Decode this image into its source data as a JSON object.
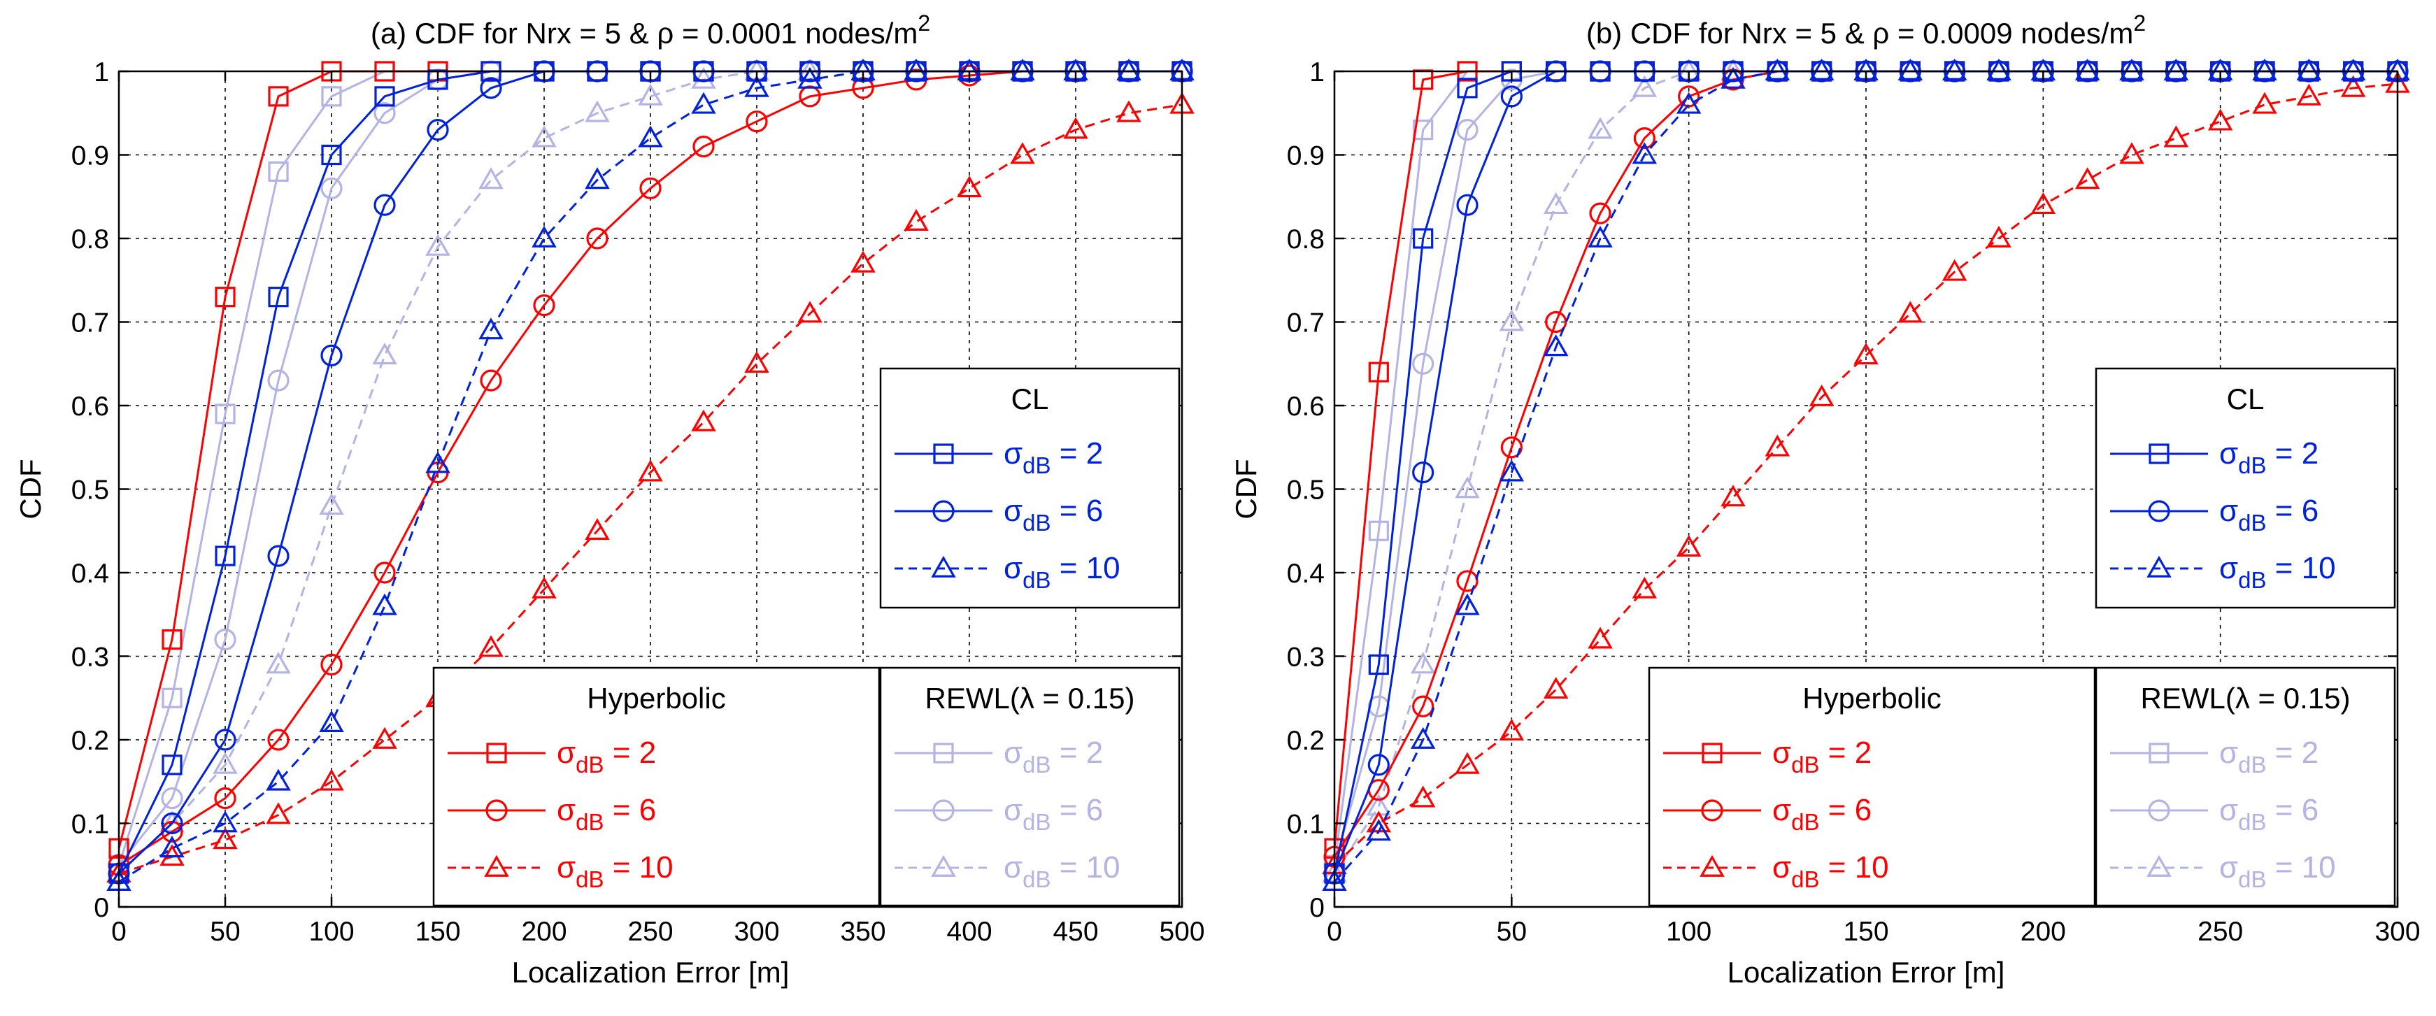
{
  "chart_data": [
    {
      "type": "line",
      "title_main": "(a) CDF for Nrx = 5 & ρ = 0.0001 nodes/m",
      "title_sup": "2",
      "xlabel": "Localization Error [m]",
      "ylabel": "CDF",
      "xlim": [
        0,
        500
      ],
      "ylim": [
        0,
        1
      ],
      "xticks": [
        "0",
        "50",
        "100",
        "150",
        "200",
        "250",
        "300",
        "350",
        "400",
        "450",
        "500"
      ],
      "yticks": [
        "0",
        "0.1",
        "0.2",
        "0.3",
        "0.4",
        "0.5",
        "0.6",
        "0.7",
        "0.8",
        "0.9",
        "1"
      ],
      "grid": true,
      "x": [
        0,
        25,
        50,
        75,
        100,
        125,
        150,
        175,
        200,
        225,
        250,
        275,
        300,
        325,
        350,
        375,
        400,
        425,
        450,
        475,
        500
      ],
      "series": [
        {
          "name": "Hyperbolic σdB = 2",
          "group": "Hyperbolic",
          "sigma": "2",
          "color": "#ff0000",
          "marker": "square",
          "dash": "solid",
          "values": [
            0.07,
            0.32,
            0.73,
            0.97,
            1.0,
            1.0,
            1.0,
            1.0,
            1.0,
            1.0,
            1.0,
            1.0,
            1.0,
            1.0,
            1.0,
            1.0,
            1.0,
            1.0,
            1.0,
            1.0,
            1.0
          ]
        },
        {
          "name": "Hyperbolic σdB = 6",
          "group": "Hyperbolic",
          "sigma": "6",
          "color": "#ff0000",
          "marker": "circle",
          "dash": "solid",
          "values": [
            0.05,
            0.09,
            0.13,
            0.2,
            0.29,
            0.4,
            0.52,
            0.63,
            0.72,
            0.8,
            0.86,
            0.91,
            0.94,
            0.97,
            0.98,
            0.99,
            0.995,
            1.0,
            1.0,
            1.0,
            1.0
          ]
        },
        {
          "name": "Hyperbolic σdB = 10",
          "group": "Hyperbolic",
          "sigma": "10",
          "color": "#ff0000",
          "marker": "triangle",
          "dash": "dashed",
          "values": [
            0.04,
            0.06,
            0.08,
            0.11,
            0.15,
            0.2,
            0.25,
            0.31,
            0.38,
            0.45,
            0.52,
            0.58,
            0.65,
            0.71,
            0.77,
            0.82,
            0.86,
            0.9,
            0.93,
            0.95,
            0.96
          ]
        },
        {
          "name": "CL σdB = 2",
          "group": "CL",
          "sigma": "2",
          "color": "#0022dd",
          "marker": "square",
          "dash": "solid",
          "values": [
            0.04,
            0.17,
            0.42,
            0.73,
            0.9,
            0.97,
            0.99,
            1.0,
            1.0,
            1.0,
            1.0,
            1.0,
            1.0,
            1.0,
            1.0,
            1.0,
            1.0,
            1.0,
            1.0,
            1.0,
            1.0
          ]
        },
        {
          "name": "CL σdB = 6",
          "group": "CL",
          "sigma": "6",
          "color": "#0022dd",
          "marker": "circle",
          "dash": "solid",
          "values": [
            0.04,
            0.1,
            0.2,
            0.42,
            0.66,
            0.84,
            0.93,
            0.98,
            1.0,
            1.0,
            1.0,
            1.0,
            1.0,
            1.0,
            1.0,
            1.0,
            1.0,
            1.0,
            1.0,
            1.0,
            1.0
          ]
        },
        {
          "name": "CL σdB = 10",
          "group": "CL",
          "sigma": "10",
          "color": "#0022dd",
          "marker": "triangle",
          "dash": "dashed",
          "values": [
            0.03,
            0.07,
            0.1,
            0.15,
            0.22,
            0.36,
            0.53,
            0.69,
            0.8,
            0.87,
            0.92,
            0.96,
            0.98,
            0.99,
            1.0,
            1.0,
            1.0,
            1.0,
            1.0,
            1.0,
            1.0
          ]
        },
        {
          "name": "REWL σdB = 2",
          "group": "REWL(λ = 0.15)",
          "sigma": "2",
          "color": "#b3b3e6",
          "marker": "square",
          "dash": "solid",
          "values": [
            0.05,
            0.25,
            0.59,
            0.88,
            0.97,
            1.0,
            1.0,
            1.0,
            1.0,
            1.0,
            1.0,
            1.0,
            1.0,
            1.0,
            1.0,
            1.0,
            1.0,
            1.0,
            1.0,
            1.0,
            1.0
          ]
        },
        {
          "name": "REWL σdB = 6",
          "group": "REWL(λ = 0.15)",
          "sigma": "6",
          "color": "#b3b3e6",
          "marker": "circle",
          "dash": "solid",
          "values": [
            0.05,
            0.13,
            0.32,
            0.63,
            0.86,
            0.95,
            0.99,
            1.0,
            1.0,
            1.0,
            1.0,
            1.0,
            1.0,
            1.0,
            1.0,
            1.0,
            1.0,
            1.0,
            1.0,
            1.0,
            1.0
          ]
        },
        {
          "name": "REWL σdB = 10",
          "group": "REWL(λ = 0.15)",
          "sigma": "10",
          "color": "#b3b3e6",
          "marker": "triangle",
          "dash": "dashed",
          "values": [
            0.04,
            0.1,
            0.17,
            0.29,
            0.48,
            0.66,
            0.79,
            0.87,
            0.92,
            0.95,
            0.97,
            0.99,
            1.0,
            1.0,
            1.0,
            1.0,
            1.0,
            1.0,
            1.0,
            1.0,
            1.0
          ]
        }
      ]
    },
    {
      "type": "line",
      "title_main": "(b) CDF for Nrx = 5 & ρ = 0.0009 nodes/m",
      "title_sup": "2",
      "xlabel": "Localization Error [m]",
      "ylabel": "CDF",
      "xlim": [
        0,
        300
      ],
      "ylim": [
        0,
        1
      ],
      "xticks": [
        "0",
        "50",
        "100",
        "150",
        "200",
        "250",
        "300"
      ],
      "yticks": [
        "0",
        "0.1",
        "0.2",
        "0.3",
        "0.4",
        "0.5",
        "0.6",
        "0.7",
        "0.8",
        "0.9",
        "1"
      ],
      "grid": true,
      "x": [
        0,
        12.5,
        25,
        37.5,
        50,
        62.5,
        75,
        87.5,
        100,
        112.5,
        125,
        137.5,
        150,
        162.5,
        175,
        187.5,
        200,
        212.5,
        225,
        237.5,
        250,
        262.5,
        275,
        287.5,
        300
      ],
      "series": [
        {
          "name": "Hyperbolic σdB = 2",
          "group": "Hyperbolic",
          "sigma": "2",
          "color": "#ff0000",
          "marker": "square",
          "dash": "solid",
          "values": [
            0.07,
            0.64,
            0.99,
            1.0,
            1.0,
            1.0,
            1.0,
            1.0,
            1.0,
            1.0,
            1.0,
            1.0,
            1.0,
            1.0,
            1.0,
            1.0,
            1.0,
            1.0,
            1.0,
            1.0,
            1.0,
            1.0,
            1.0,
            1.0,
            1.0
          ]
        },
        {
          "name": "Hyperbolic σdB = 6",
          "group": "Hyperbolic",
          "sigma": "6",
          "color": "#ff0000",
          "marker": "circle",
          "dash": "solid",
          "values": [
            0.06,
            0.14,
            0.24,
            0.39,
            0.55,
            0.7,
            0.83,
            0.92,
            0.97,
            0.99,
            1.0,
            1.0,
            1.0,
            1.0,
            1.0,
            1.0,
            1.0,
            1.0,
            1.0,
            1.0,
            1.0,
            1.0,
            1.0,
            1.0,
            1.0
          ]
        },
        {
          "name": "Hyperbolic σdB = 10",
          "group": "Hyperbolic",
          "sigma": "10",
          "color": "#ff0000",
          "marker": "triangle",
          "dash": "dashed",
          "values": [
            0.05,
            0.1,
            0.13,
            0.17,
            0.21,
            0.26,
            0.32,
            0.38,
            0.43,
            0.49,
            0.55,
            0.61,
            0.66,
            0.71,
            0.76,
            0.8,
            0.84,
            0.87,
            0.9,
            0.92,
            0.94,
            0.96,
            0.97,
            0.98,
            0.985
          ]
        },
        {
          "name": "CL σdB = 2",
          "group": "CL",
          "sigma": "2",
          "color": "#0022dd",
          "marker": "square",
          "dash": "solid",
          "values": [
            0.04,
            0.29,
            0.8,
            0.98,
            1.0,
            1.0,
            1.0,
            1.0,
            1.0,
            1.0,
            1.0,
            1.0,
            1.0,
            1.0,
            1.0,
            1.0,
            1.0,
            1.0,
            1.0,
            1.0,
            1.0,
            1.0,
            1.0,
            1.0,
            1.0
          ]
        },
        {
          "name": "CL σdB = 6",
          "group": "CL",
          "sigma": "6",
          "color": "#0022dd",
          "marker": "circle",
          "dash": "solid",
          "values": [
            0.04,
            0.17,
            0.52,
            0.84,
            0.97,
            1.0,
            1.0,
            1.0,
            1.0,
            1.0,
            1.0,
            1.0,
            1.0,
            1.0,
            1.0,
            1.0,
            1.0,
            1.0,
            1.0,
            1.0,
            1.0,
            1.0,
            1.0,
            1.0,
            1.0
          ]
        },
        {
          "name": "CL σdB = 10",
          "group": "CL",
          "sigma": "10",
          "color": "#0022dd",
          "marker": "triangle",
          "dash": "dashed",
          "values": [
            0.03,
            0.09,
            0.2,
            0.36,
            0.52,
            0.67,
            0.8,
            0.9,
            0.96,
            0.99,
            1.0,
            1.0,
            1.0,
            1.0,
            1.0,
            1.0,
            1.0,
            1.0,
            1.0,
            1.0,
            1.0,
            1.0,
            1.0,
            1.0,
            1.0
          ]
        },
        {
          "name": "REWL σdB = 2",
          "group": "REWL(λ = 0.15)",
          "sigma": "2",
          "color": "#b3b3e6",
          "marker": "square",
          "dash": "solid",
          "values": [
            0.05,
            0.45,
            0.93,
            1.0,
            1.0,
            1.0,
            1.0,
            1.0,
            1.0,
            1.0,
            1.0,
            1.0,
            1.0,
            1.0,
            1.0,
            1.0,
            1.0,
            1.0,
            1.0,
            1.0,
            1.0,
            1.0,
            1.0,
            1.0,
            1.0
          ]
        },
        {
          "name": "REWL σdB = 6",
          "group": "REWL(λ = 0.15)",
          "sigma": "6",
          "color": "#b3b3e6",
          "marker": "circle",
          "dash": "solid",
          "values": [
            0.05,
            0.24,
            0.65,
            0.93,
            0.99,
            1.0,
            1.0,
            1.0,
            1.0,
            1.0,
            1.0,
            1.0,
            1.0,
            1.0,
            1.0,
            1.0,
            1.0,
            1.0,
            1.0,
            1.0,
            1.0,
            1.0,
            1.0,
            1.0,
            1.0
          ]
        },
        {
          "name": "REWL σdB = 10",
          "group": "REWL(λ = 0.15)",
          "sigma": "10",
          "color": "#b3b3e6",
          "marker": "triangle",
          "dash": "dashed",
          "values": [
            0.04,
            0.12,
            0.29,
            0.5,
            0.7,
            0.84,
            0.93,
            0.98,
            1.0,
            1.0,
            1.0,
            1.0,
            1.0,
            1.0,
            1.0,
            1.0,
            1.0,
            1.0,
            1.0,
            1.0,
            1.0,
            1.0,
            1.0,
            1.0,
            1.0
          ]
        }
      ]
    }
  ],
  "legend": {
    "cl_title": "CL",
    "hyperbolic_title": "Hyperbolic",
    "rewl_title": "REWL(λ = 0.15)",
    "sigma_symbol": "σ",
    "sigma_sub": "dB",
    "entries": [
      {
        "value": "2",
        "marker": "square",
        "dash": "solid"
      },
      {
        "value": "6",
        "marker": "circle",
        "dash": "solid"
      },
      {
        "value": "10",
        "marker": "triangle",
        "dash": "dashed"
      }
    ],
    "colors": {
      "CL": "#0022dd",
      "Hyperbolic": "#ff0000",
      "REWL": "#b3b3e6"
    }
  }
}
